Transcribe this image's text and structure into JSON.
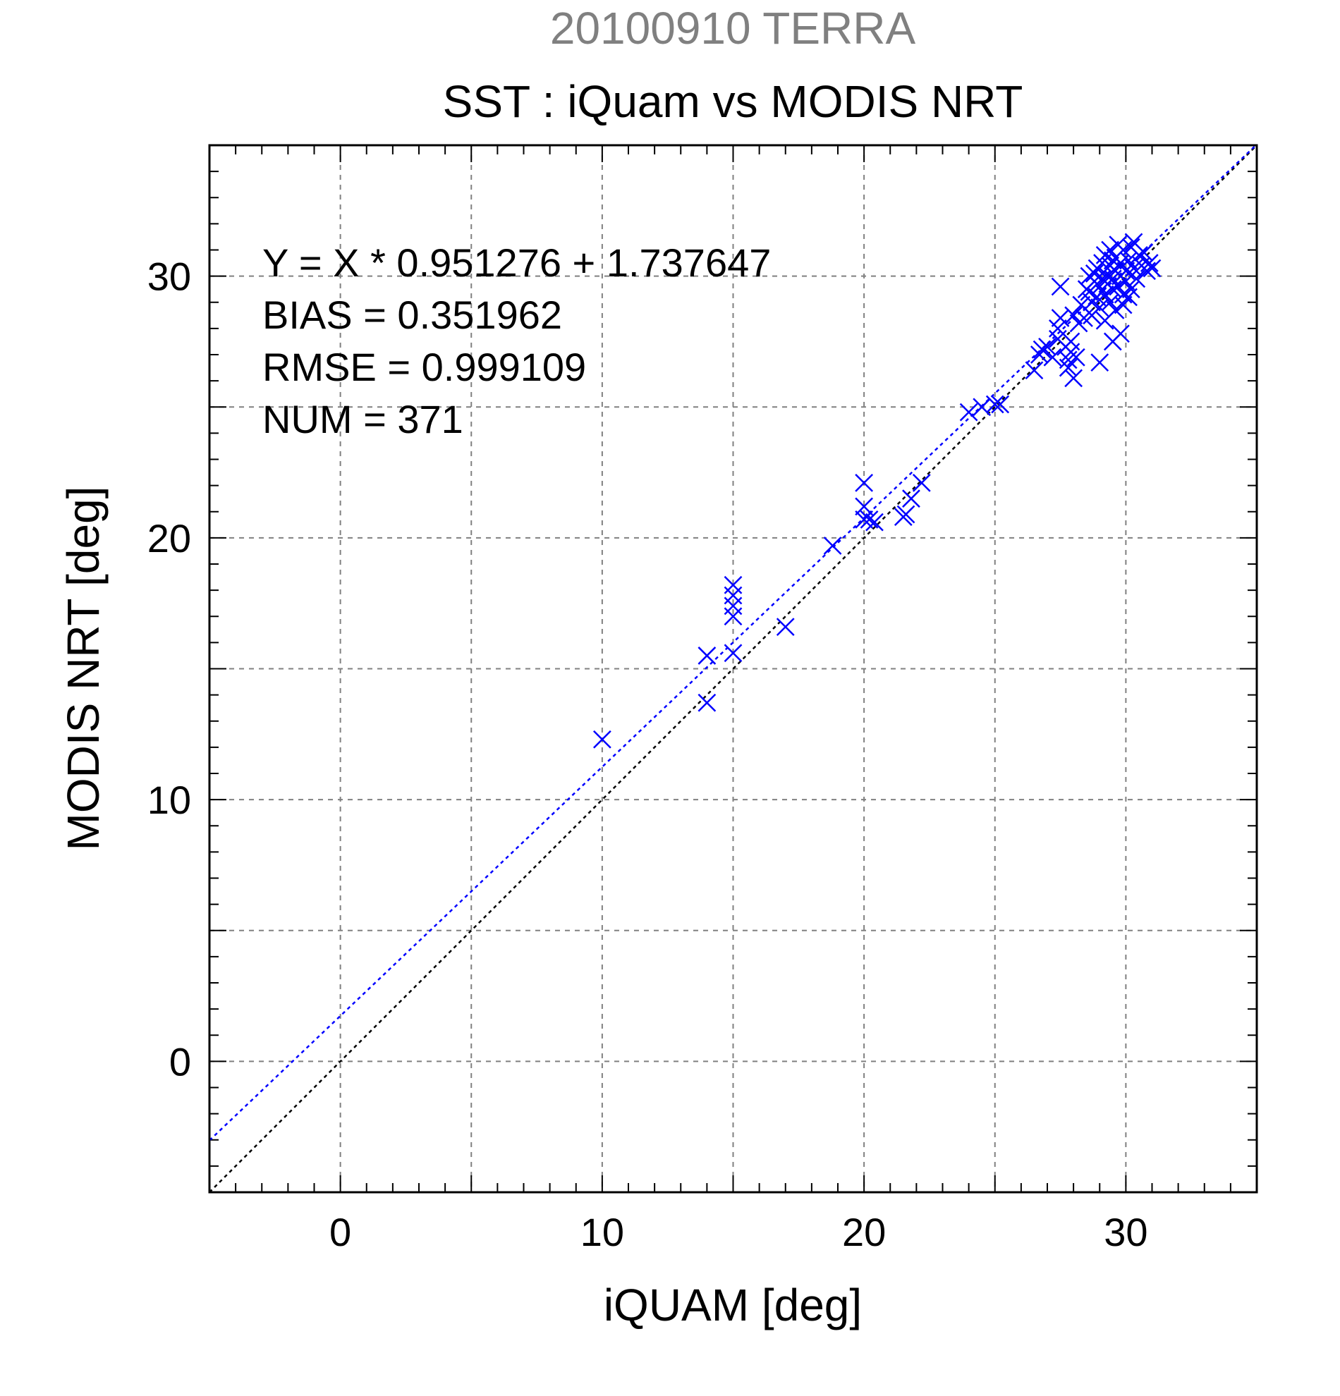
{
  "chart_data": {
    "type": "scatter",
    "subtitle": "20100910 TERRA",
    "title": "SST : iQuam vs MODIS NRT",
    "xlabel": "iQUAM [deg]",
    "ylabel": "MODIS NRT [deg]",
    "xlim": [
      -5,
      35
    ],
    "ylim": [
      -5,
      35
    ],
    "xticks": [
      0,
      10,
      20,
      30
    ],
    "yticks": [
      0,
      10,
      20,
      30
    ],
    "grid": true,
    "stats": [
      "Y = X * 0.951276 + 1.737647",
      "BIAS = 0.351962",
      "RMSE = 0.999109",
      "NUM = 371"
    ],
    "fit_line": {
      "slope": 0.951276,
      "intercept": 1.737647,
      "color": "#0000ff"
    },
    "identity_line": {
      "slope": 1,
      "intercept": 0,
      "color": "#000000"
    },
    "colors": {
      "points": "#0000ff",
      "subtitle": "#808080",
      "grid": "#808080",
      "axes": "#000000"
    },
    "series": [
      {
        "marker": "x",
        "points": [
          [
            10.0,
            12.3
          ],
          [
            14.0,
            13.7
          ],
          [
            14.0,
            15.5
          ],
          [
            15.0,
            15.6
          ],
          [
            15.0,
            17.0
          ],
          [
            15.0,
            17.4
          ],
          [
            15.0,
            17.8
          ],
          [
            15.0,
            18.2
          ],
          [
            17.0,
            16.6
          ],
          [
            18.8,
            19.7
          ],
          [
            20.0,
            20.7
          ],
          [
            20.0,
            21.2
          ],
          [
            20.0,
            22.1
          ],
          [
            20.2,
            20.7
          ],
          [
            20.4,
            20.6
          ],
          [
            21.5,
            20.8
          ],
          [
            21.6,
            20.9
          ],
          [
            21.8,
            21.5
          ],
          [
            22.2,
            22.1
          ],
          [
            24.0,
            24.8
          ],
          [
            24.5,
            25.0
          ],
          [
            25.0,
            25.1
          ],
          [
            25.2,
            25.1
          ],
          [
            26.5,
            26.4
          ],
          [
            26.7,
            27.0
          ],
          [
            26.8,
            27.2
          ],
          [
            27.0,
            27.3
          ],
          [
            27.2,
            26.9
          ],
          [
            27.4,
            27.6
          ],
          [
            27.4,
            28.0
          ],
          [
            27.5,
            28.4
          ],
          [
            27.5,
            29.6
          ],
          [
            27.7,
            27.3
          ],
          [
            27.8,
            26.5
          ],
          [
            27.8,
            26.8
          ],
          [
            27.9,
            27.1
          ],
          [
            27.9,
            27.5
          ],
          [
            28.0,
            26.1
          ],
          [
            28.0,
            28.5
          ],
          [
            28.1,
            26.9
          ],
          [
            28.2,
            28.2
          ],
          [
            28.3,
            28.9
          ],
          [
            28.4,
            28.4
          ],
          [
            28.5,
            29.5
          ],
          [
            28.6,
            30.0
          ],
          [
            28.7,
            29.0
          ],
          [
            28.7,
            28.5
          ],
          [
            28.8,
            29.8
          ],
          [
            28.9,
            29.2
          ],
          [
            28.9,
            30.3
          ],
          [
            29.0,
            26.7
          ],
          [
            29.0,
            29.6
          ],
          [
            29.0,
            28.8
          ],
          [
            29.1,
            29.9
          ],
          [
            29.1,
            30.5
          ],
          [
            29.2,
            29.3
          ],
          [
            29.2,
            30.8
          ],
          [
            29.3,
            29.7
          ],
          [
            29.3,
            30.0
          ],
          [
            29.4,
            29.0
          ],
          [
            29.4,
            30.4
          ],
          [
            29.4,
            31.0
          ],
          [
            29.5,
            27.5
          ],
          [
            29.5,
            29.5
          ],
          [
            29.5,
            29.9
          ],
          [
            29.6,
            30.2
          ],
          [
            29.6,
            30.7
          ],
          [
            29.6,
            28.7
          ],
          [
            29.7,
            29.6
          ],
          [
            29.7,
            31.2
          ],
          [
            29.8,
            27.8
          ],
          [
            29.8,
            30.0
          ],
          [
            29.8,
            30.5
          ],
          [
            29.9,
            29.3
          ],
          [
            29.9,
            31.0
          ],
          [
            30.0,
            30.2
          ],
          [
            30.0,
            29.8
          ],
          [
            30.1,
            30.6
          ],
          [
            30.2,
            29.5
          ],
          [
            30.2,
            31.1
          ],
          [
            30.3,
            30.3
          ],
          [
            30.4,
            29.9
          ],
          [
            30.5,
            30.8
          ],
          [
            30.6,
            30.4
          ],
          [
            30.7,
            30.9
          ],
          [
            30.8,
            30.2
          ],
          [
            30.9,
            30.5
          ],
          [
            31.0,
            30.3
          ],
          [
            29.2,
            28.3
          ],
          [
            28.6,
            29.4
          ],
          [
            29.9,
            28.9
          ],
          [
            30.1,
            29.2
          ],
          [
            28.8,
            30.1
          ],
          [
            29.5,
            30.6
          ],
          [
            30.3,
            31.3
          ]
        ]
      }
    ]
  }
}
